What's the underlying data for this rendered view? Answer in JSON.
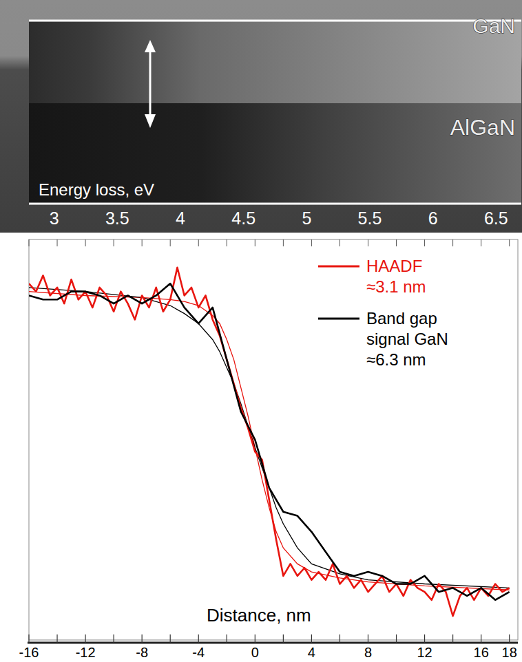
{
  "chart_data": [
    {
      "type": "image",
      "x_label": "Energy loss, eV",
      "xlim": [
        2.8,
        6.7
      ],
      "xticks": [
        3,
        3.5,
        4,
        4.5,
        5,
        5.5,
        6,
        6.5
      ],
      "labels": [
        "GaN",
        "AlGaN"
      ]
    },
    {
      "type": "line",
      "x_label": "Distance, nm",
      "xlim": [
        -16,
        18.6
      ],
      "xticks": [
        -16,
        -12,
        -8,
        -4,
        0,
        4,
        8,
        12,
        16,
        18
      ],
      "xticks_minor": [
        -14,
        -10,
        -6,
        -2,
        2,
        6,
        10,
        14
      ],
      "ylim": [
        0,
        1
      ],
      "tick_labels": "x",
      "legend": "top-right",
      "series": [
        {
          "name": "HAADF",
          "color": "#e8150f",
          "annotation": "≈3.1 nm",
          "x": [
            -16,
            -15.5,
            -15,
            -14.5,
            -14,
            -13.5,
            -13,
            -12.5,
            -12,
            -11.5,
            -11,
            -10.5,
            -10,
            -9.5,
            -9,
            -8.5,
            -8,
            -7.5,
            -7,
            -6.5,
            -6,
            -5.5,
            -5,
            -4.5,
            -4,
            -3.5,
            -3,
            -2.5,
            -2,
            -1.5,
            -1,
            -0.5,
            0,
            0.5,
            1,
            1.5,
            2,
            2.5,
            3,
            3.5,
            4,
            4.5,
            5,
            5.5,
            6,
            6.5,
            7,
            7.5,
            8,
            8.5,
            9,
            9.5,
            10,
            10.5,
            11,
            11.5,
            12,
            12.5,
            13,
            13.5,
            14,
            14.5,
            15,
            15.5,
            16,
            16.5,
            17,
            17.5,
            18
          ],
          "values": [
            0.89,
            0.87,
            0.91,
            0.86,
            0.88,
            0.84,
            0.9,
            0.85,
            0.87,
            0.83,
            0.88,
            0.86,
            0.82,
            0.87,
            0.84,
            0.8,
            0.86,
            0.83,
            0.88,
            0.82,
            0.85,
            0.93,
            0.86,
            0.88,
            0.83,
            0.86,
            0.8,
            0.76,
            0.7,
            0.64,
            0.58,
            0.53,
            0.47,
            0.45,
            0.35,
            0.25,
            0.16,
            0.19,
            0.16,
            0.18,
            0.15,
            0.17,
            0.15,
            0.19,
            0.14,
            0.16,
            0.13,
            0.15,
            0.12,
            0.14,
            0.16,
            0.12,
            0.14,
            0.11,
            0.15,
            0.13,
            0.12,
            0.1,
            0.14,
            0.12,
            0.06,
            0.11,
            0.13,
            0.1,
            0.13,
            0.11,
            0.14,
            0.12,
            0.13
          ],
          "fit_x": [
            -16,
            -12,
            -8,
            -6,
            -5,
            -4,
            -3,
            -2.5,
            -2,
            -1.5,
            -1,
            -0.5,
            0,
            0.5,
            1,
            1.5,
            2,
            3,
            4,
            6,
            8,
            12,
            18
          ],
          "fit_values": [
            0.87,
            0.86,
            0.855,
            0.85,
            0.845,
            0.835,
            0.81,
            0.79,
            0.75,
            0.7,
            0.63,
            0.56,
            0.48,
            0.4,
            0.33,
            0.27,
            0.23,
            0.19,
            0.17,
            0.155,
            0.145,
            0.135,
            0.125
          ]
        },
        {
          "name": "Band gap signal GaN",
          "color": "#000000",
          "annotation": "≈6.3 nm",
          "x": [
            -16,
            -15,
            -14,
            -13,
            -12,
            -11,
            -10,
            -9,
            -8,
            -7,
            -6,
            -5,
            -4,
            -3,
            -2,
            -1,
            0,
            1,
            2,
            3,
            4,
            5,
            6,
            7,
            8,
            9,
            10,
            11,
            12,
            13,
            14,
            15,
            16,
            17,
            18
          ],
          "values": [
            0.86,
            0.85,
            0.85,
            0.87,
            0.87,
            0.86,
            0.84,
            0.86,
            0.84,
            0.86,
            0.89,
            0.83,
            0.79,
            0.83,
            0.7,
            0.57,
            0.5,
            0.38,
            0.32,
            0.31,
            0.27,
            0.22,
            0.17,
            0.16,
            0.17,
            0.16,
            0.14,
            0.14,
            0.16,
            0.12,
            0.13,
            0.11,
            0.13,
            0.1,
            0.12
          ],
          "fit_x": [
            -16,
            -12,
            -8,
            -6,
            -5,
            -4,
            -3,
            -2.5,
            -2,
            -1.5,
            -1,
            -0.5,
            0,
            0.5,
            1,
            1.5,
            2,
            3,
            4,
            6,
            8,
            12,
            18
          ],
          "fit_values": [
            0.88,
            0.87,
            0.855,
            0.835,
            0.815,
            0.79,
            0.75,
            0.72,
            0.68,
            0.64,
            0.59,
            0.535,
            0.48,
            0.43,
            0.38,
            0.33,
            0.29,
            0.23,
            0.19,
            0.165,
            0.15,
            0.14,
            0.13
          ]
        }
      ]
    }
  ]
}
